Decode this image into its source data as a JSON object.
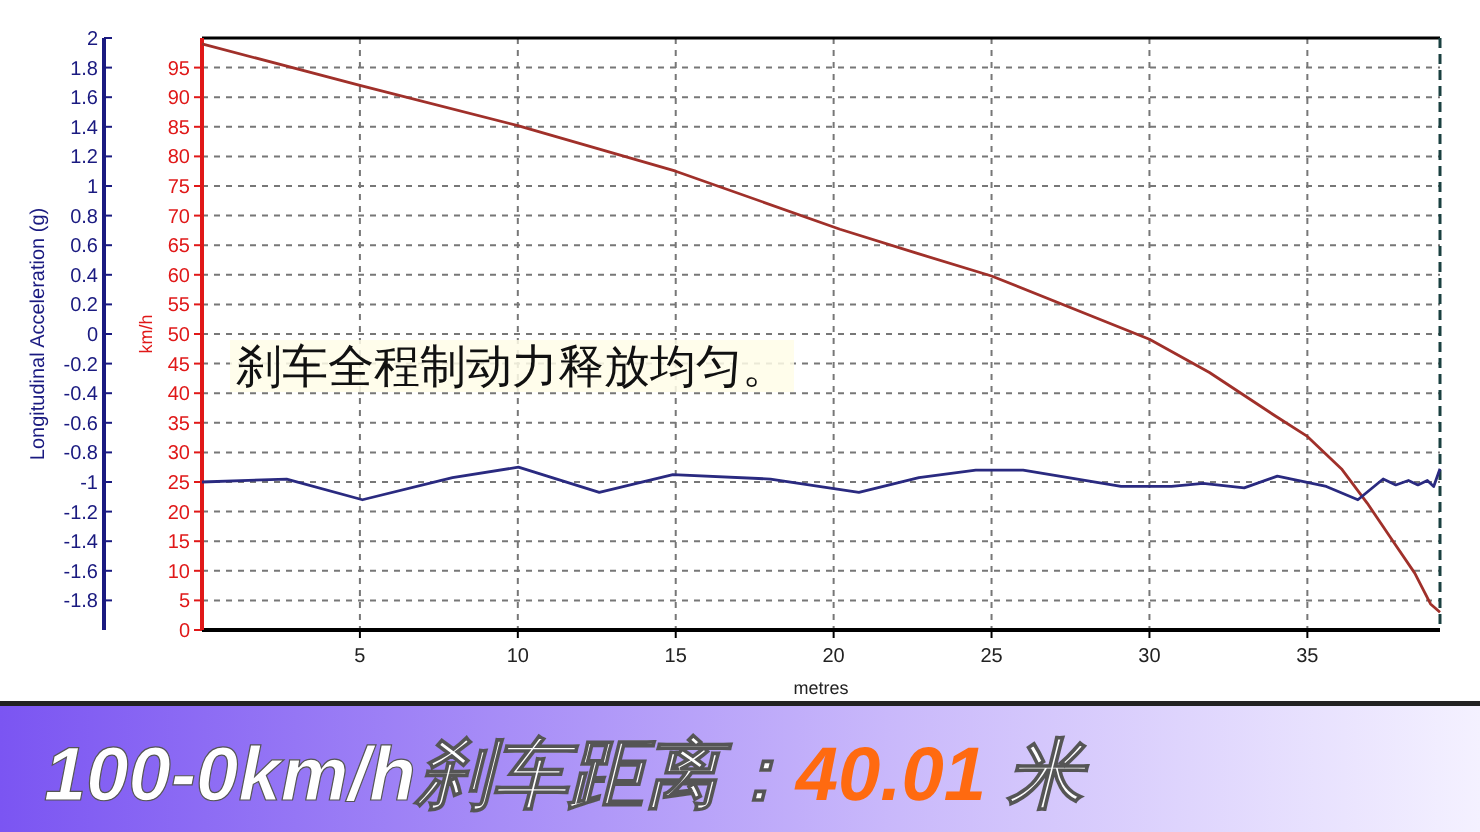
{
  "chart_data": {
    "type": "line",
    "title": "100-0km/h刹车距离：40.01 米",
    "xlabel": "metres",
    "ylabel": "km/h",
    "y2label": "Longitudinal Acceleration (g)",
    "annotations": [
      "刹车全程制动力释放均匀。"
    ],
    "xlim": [
      0,
      39.2
    ],
    "xticks": [
      5,
      10,
      15,
      20,
      25,
      30,
      35
    ],
    "ylim": [
      0,
      100
    ],
    "yticks": [
      0,
      5,
      10,
      15,
      20,
      25,
      30,
      35,
      40,
      45,
      50,
      55,
      60,
      65,
      70,
      75,
      80,
      85,
      90,
      95
    ],
    "y2lim": [
      -2,
      2
    ],
    "y2ticks": [
      2,
      1.8,
      1.6,
      1.4,
      1.2,
      1,
      0.8,
      0.6,
      0.4,
      0.2,
      0,
      -0.2,
      -0.4,
      -0.6,
      -0.8,
      -1,
      -1.2,
      -1.4,
      -1.6,
      -1.8
    ],
    "grid": true,
    "series": [
      {
        "color": "#a0302a",
        "x": [
          0,
          5,
          10,
          15,
          20.2,
          22.6,
          25,
          30,
          31.9,
          34,
          35,
          36.1,
          36.9,
          37.75,
          38.4,
          38.9,
          39.2
        ],
        "values": [
          99,
          92,
          85.2,
          77.5,
          67.7,
          63.7,
          59.8,
          49.1,
          43.5,
          36.1,
          32.7,
          27.1,
          21.4,
          14.7,
          9.6,
          4.4,
          3
        ]
      },
      {
        "color": "#2a2a80",
        "axis": "y2",
        "x": [
          0,
          2.68,
          5.08,
          7.93,
          10.02,
          12.58,
          14.91,
          18,
          20.8,
          22.7,
          24.5,
          26,
          29.1,
          30.7,
          31.7,
          33,
          34.05,
          35.6,
          36.6,
          37.4,
          37.8,
          38.2,
          38.5,
          38.8,
          39,
          39.2
        ],
        "values": [
          -1,
          -0.98,
          -1.12,
          -0.97,
          -0.9,
          -1.07,
          -0.95,
          -0.98,
          -1.07,
          -0.97,
          -0.92,
          -0.92,
          -1.03,
          -1.03,
          -1.01,
          -1.04,
          -0.96,
          -1.03,
          -1.12,
          -0.98,
          -1.02,
          -0.99,
          -1.02,
          -0.99,
          -1.03,
          -0.91
        ]
      }
    ]
  }
}
